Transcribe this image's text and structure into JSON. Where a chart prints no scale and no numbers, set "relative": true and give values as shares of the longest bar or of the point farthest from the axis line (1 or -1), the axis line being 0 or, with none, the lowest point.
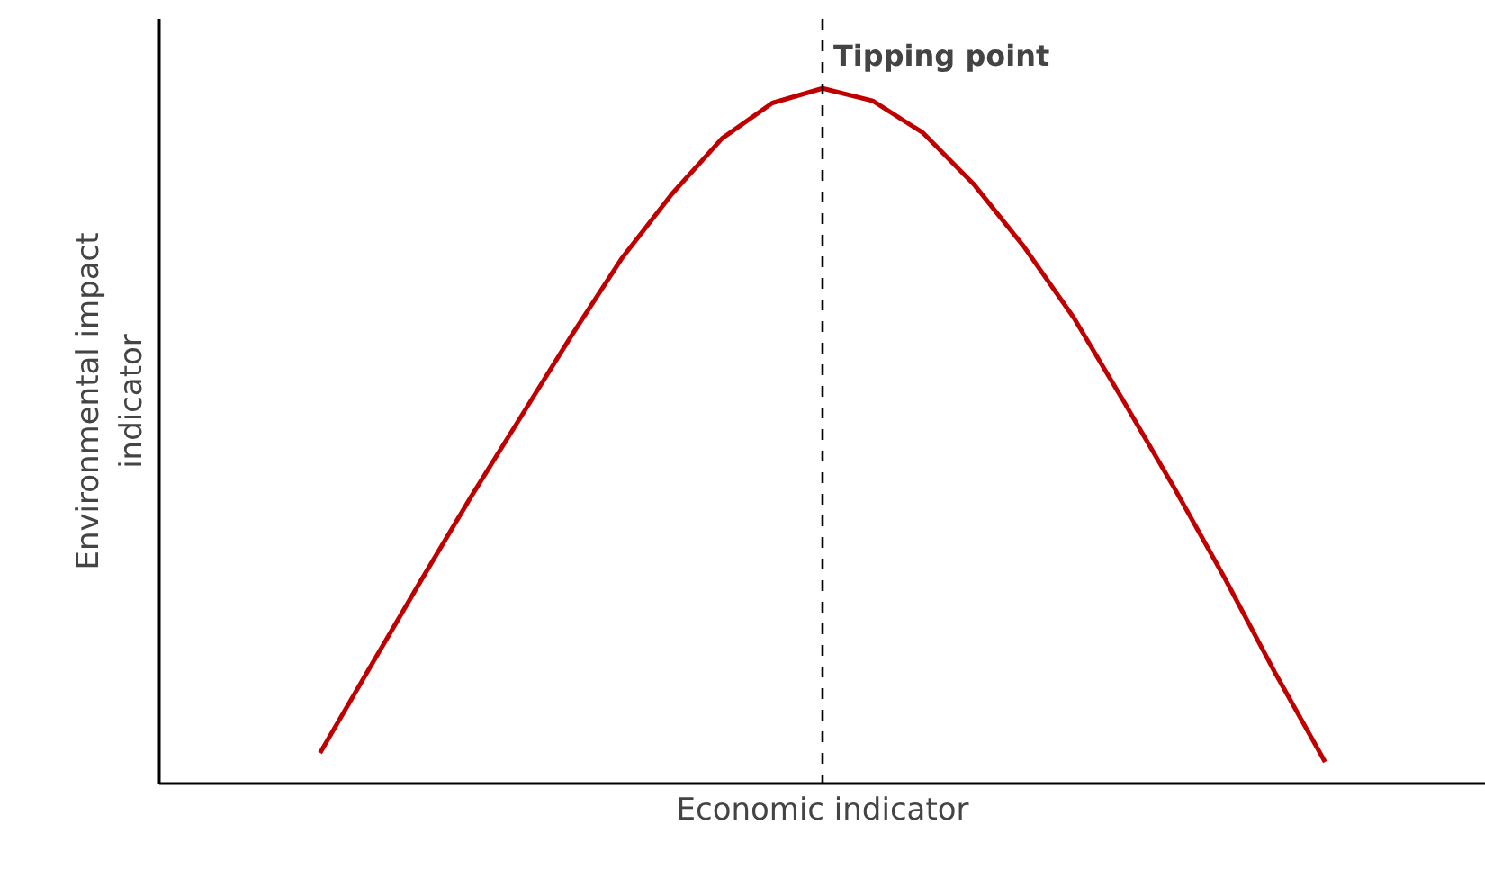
{
  "chart_data": {
    "type": "line",
    "relative": true,
    "xlabel": "Economic indicator",
    "ylabel": "Environmental impact indicator",
    "categories": [
      null,
      null,
      null,
      null,
      null,
      null,
      null,
      null,
      null,
      null,
      null,
      null,
      null,
      null,
      null,
      null,
      null,
      null,
      null,
      null,
      null
    ],
    "series": [
      {
        "color": "#c00000",
        "values": [
          0.044,
          0.168,
          0.291,
          0.412,
          0.528,
          0.644,
          0.755,
          0.848,
          0.928,
          0.979,
          1.0,
          0.982,
          0.936,
          0.863,
          0.773,
          0.67,
          0.549,
          0.425,
          0.296,
          0.16,
          0.031
        ]
      }
    ],
    "annotations": [
      "Tipping point"
    ],
    "line_style": "solid"
  }
}
